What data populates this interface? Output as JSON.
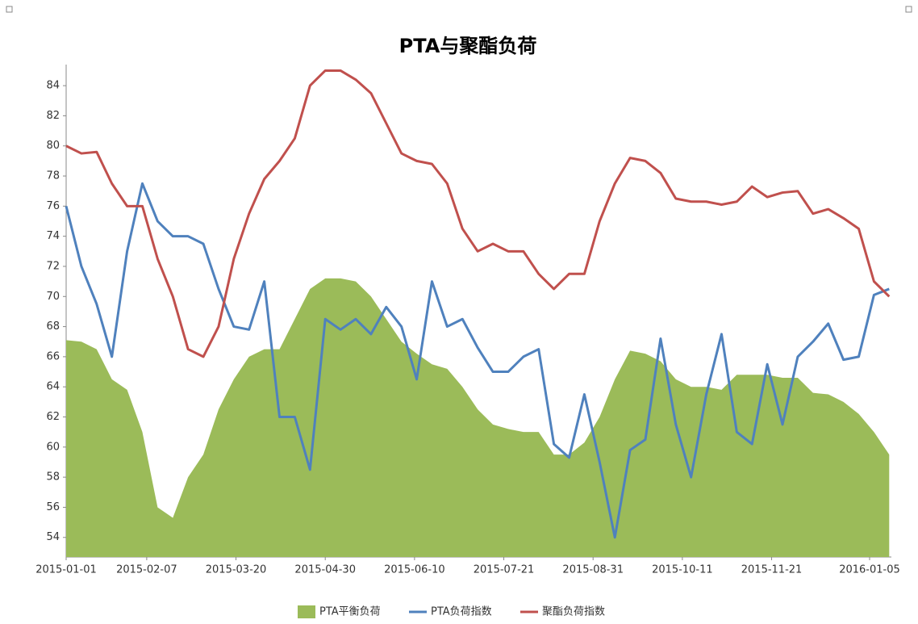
{
  "chart_data": {
    "type": "line",
    "title": "PTA与聚酯负荷",
    "x": [
      "2015-01-01",
      "2015-01-08",
      "2015-01-15",
      "2015-01-22",
      "2015-01-29",
      "2015-02-05",
      "2015-02-12",
      "2015-02-19",
      "2015-02-26",
      "2015-03-05",
      "2015-03-12",
      "2015-03-19",
      "2015-03-26",
      "2015-04-02",
      "2015-04-09",
      "2015-04-16",
      "2015-04-23",
      "2015-04-30",
      "2015-05-07",
      "2015-05-14",
      "2015-05-21",
      "2015-05-28",
      "2015-06-04",
      "2015-06-11",
      "2015-06-18",
      "2015-06-25",
      "2015-07-02",
      "2015-07-09",
      "2015-07-16",
      "2015-07-23",
      "2015-07-30",
      "2015-08-06",
      "2015-08-13",
      "2015-08-20",
      "2015-08-27",
      "2015-09-03",
      "2015-09-10",
      "2015-09-17",
      "2015-09-24",
      "2015-10-01",
      "2015-10-08",
      "2015-10-15",
      "2015-10-22",
      "2015-10-29",
      "2015-11-05",
      "2015-11-12",
      "2015-11-19",
      "2015-11-26",
      "2015-12-03",
      "2015-12-10",
      "2015-12-17",
      "2015-12-24",
      "2015-12-31",
      "2016-01-07",
      "2016-01-14"
    ],
    "series": [
      {
        "name": "PTA平衡负荷",
        "color": "#9bbb59",
        "style": "area",
        "values": [
          67.1,
          67,
          66.5,
          64.5,
          63.8,
          61,
          56,
          55.3,
          58,
          59.5,
          62.5,
          64.5,
          66,
          66.5,
          66.5,
          68.5,
          70.5,
          71.2,
          71.2,
          71,
          70,
          68.5,
          67,
          66.2,
          65.5,
          65.2,
          64,
          62.5,
          61.5,
          61.2,
          61,
          61,
          59.5,
          59.5,
          60.3,
          62,
          64.5,
          66.4,
          66.2,
          65.7,
          64.5,
          64,
          64,
          63.8,
          64.8,
          64.8,
          64.8,
          64.6,
          64.6,
          63.6,
          63.5,
          63,
          62.2,
          61,
          59.5
        ]
      },
      {
        "name": "PTA负荷指数",
        "color": "#4f81bd",
        "style": "line",
        "values": [
          76,
          72,
          69.5,
          66,
          73,
          77.5,
          75,
          74,
          74,
          73.5,
          70.5,
          68,
          67.8,
          71,
          62,
          62,
          58.5,
          68.5,
          67.8,
          68.5,
          67.5,
          69.3,
          68,
          64.5,
          71,
          68,
          68.5,
          66.6,
          65,
          65,
          66,
          66.5,
          60.2,
          59.3,
          63.5,
          59,
          54,
          59.8,
          60.5,
          67.2,
          61.5,
          58,
          63.5,
          67.5,
          61,
          60.2,
          65.5,
          61.5,
          66,
          67,
          68.2,
          65.8,
          66,
          70.1,
          70.5
        ]
      },
      {
        "name": "聚酯负荷指数",
        "color": "#c0504d",
        "style": "line",
        "values": [
          80,
          79.5,
          79.6,
          77.5,
          76,
          76,
          72.5,
          70,
          66.5,
          66,
          68,
          72.5,
          75.5,
          77.8,
          79,
          80.5,
          84,
          85,
          85,
          84.4,
          83.5,
          81.5,
          79.5,
          79,
          78.8,
          77.5,
          74.5,
          73,
          73.5,
          73,
          73,
          71.5,
          70.5,
          71.5,
          71.5,
          75,
          77.5,
          79.2,
          79,
          78.2,
          76.5,
          76.3,
          76.3,
          76.1,
          76.3,
          77.3,
          76.6,
          76.9,
          77,
          75.5,
          75.8,
          75.2,
          74.5,
          71,
          70
        ]
      }
    ],
    "xlim": [
      "2015-01-01",
      "2016-01-15"
    ],
    "xticks": [
      "2015-01-01",
      "2015-02-07",
      "2015-03-20",
      "2015-04-30",
      "2015-06-10",
      "2015-07-21",
      "2015-08-31",
      "2015-10-11",
      "2015-11-21",
      "2016-01-05"
    ],
    "ylim": [
      52.7,
      85.4
    ],
    "yticks": [
      54,
      56,
      58,
      60,
      62,
      64,
      66,
      68,
      70,
      72,
      74,
      76,
      78,
      80,
      82,
      84
    ],
    "legend": "bottom"
  }
}
